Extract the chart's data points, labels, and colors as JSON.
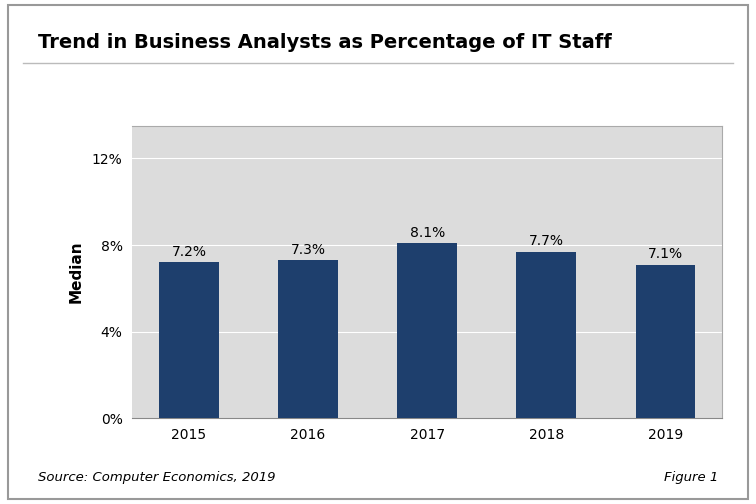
{
  "title": "Trend in Business Analysts as Percentage of IT Staff",
  "categories": [
    "2015",
    "2016",
    "2017",
    "2018",
    "2019"
  ],
  "values": [
    7.2,
    7.3,
    8.1,
    7.7,
    7.1
  ],
  "labels": [
    "7.2%",
    "7.3%",
    "8.1%",
    "7.7%",
    "7.1%"
  ],
  "bar_color": "#1e3f6d",
  "plot_bg_color": "#dcdcdc",
  "outer_bg_color": "#ffffff",
  "ylabel": "Median",
  "yticks": [
    0,
    4,
    8,
    12
  ],
  "ytick_labels": [
    "0%",
    "4%",
    "8%",
    "12%"
  ],
  "ylim": [
    0,
    13.5
  ],
  "source_text": "Source: Computer Economics, 2019",
  "figure_label": "Figure 1",
  "title_fontsize": 14,
  "axis_label_fontsize": 11,
  "tick_fontsize": 10,
  "annotation_fontsize": 10,
  "source_fontsize": 9.5,
  "bar_width": 0.5,
  "outer_border_color": "#999999",
  "title_sep_color": "#bbbbbb",
  "grid_color": "#ffffff"
}
